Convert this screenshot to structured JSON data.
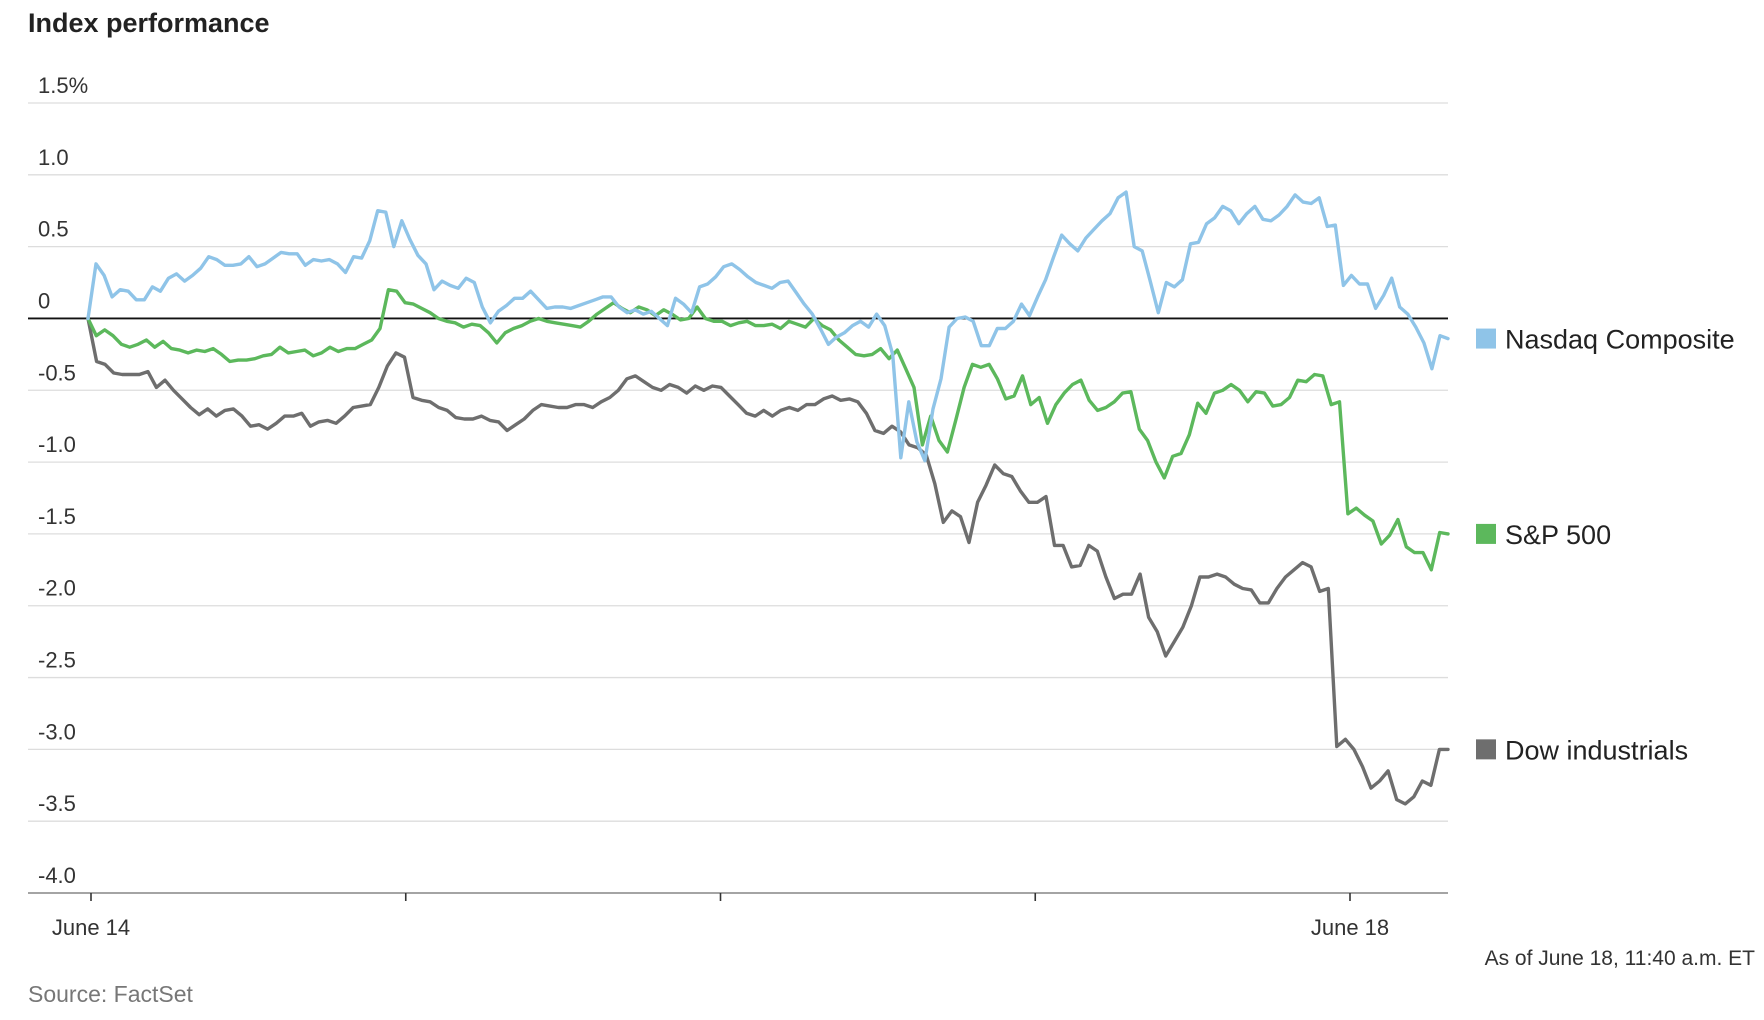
{
  "chart_data": {
    "type": "line",
    "title": "Index performance",
    "ylabel": "",
    "xlabel": "",
    "ylim": [
      -4.0,
      1.5
    ],
    "y_ticks": [
      {
        "value": 1.5,
        "label": "1.5%"
      },
      {
        "value": 1.0,
        "label": "1.0"
      },
      {
        "value": 0.5,
        "label": "0.5"
      },
      {
        "value": 0,
        "label": "0"
      },
      {
        "value": -0.5,
        "label": "-0.5"
      },
      {
        "value": -1.0,
        "label": "-1.0"
      },
      {
        "value": -1.5,
        "label": "-1.5"
      },
      {
        "value": -2.0,
        "label": "-2.0"
      },
      {
        "value": -2.5,
        "label": "-2.5"
      },
      {
        "value": -3.0,
        "label": "-3.0"
      },
      {
        "value": -3.5,
        "label": "-3.5"
      },
      {
        "value": -4.0,
        "label": "-4.0"
      }
    ],
    "x_ticks": [
      "June 14",
      "",
      "",
      "",
      "June 18"
    ],
    "grid": true,
    "legend_position": "right",
    "series": [
      {
        "name": "Nasdaq Composite",
        "color": "#8fc4e8",
        "values": [
          0.0,
          0.38,
          0.3,
          0.15,
          0.2,
          0.19,
          0.13,
          0.13,
          0.22,
          0.19,
          0.28,
          0.31,
          0.26,
          0.3,
          0.35,
          0.43,
          0.41,
          0.37,
          0.37,
          0.38,
          0.43,
          0.36,
          0.38,
          0.42,
          0.46,
          0.45,
          0.45,
          0.37,
          0.41,
          0.4,
          0.41,
          0.38,
          0.32,
          0.43,
          0.42,
          0.54,
          0.75,
          0.74,
          0.5,
          0.68,
          0.55,
          0.44,
          0.38,
          0.2,
          0.26,
          0.23,
          0.21,
          0.28,
          0.25,
          0.08,
          -0.03,
          0.05,
          0.09,
          0.14,
          0.14,
          0.19,
          0.13,
          0.07,
          0.08,
          0.08,
          0.07,
          0.09,
          0.11,
          0.13,
          0.15,
          0.15,
          0.08,
          0.04,
          0.06,
          0.03,
          0.05,
          0.0,
          -0.05,
          0.14,
          0.1,
          0.04,
          0.22,
          0.24,
          0.29,
          0.36,
          0.38,
          0.34,
          0.29,
          0.25,
          0.23,
          0.21,
          0.25,
          0.26,
          0.18,
          0.1,
          0.03,
          -0.07,
          -0.18,
          -0.13,
          -0.1,
          -0.05,
          -0.02,
          -0.06,
          0.03,
          -0.05,
          -0.25,
          -0.97,
          -0.58,
          -0.86,
          -0.99,
          -0.63,
          -0.42,
          -0.06,
          0.0,
          0.01,
          -0.02,
          -0.19,
          -0.19,
          -0.07,
          -0.07,
          -0.02,
          0.1,
          0.02,
          0.15,
          0.27,
          0.43,
          0.58,
          0.52,
          0.47,
          0.56,
          0.62,
          0.68,
          0.73,
          0.84,
          0.88,
          0.5,
          0.47,
          0.26,
          0.04,
          0.25,
          0.22,
          0.27,
          0.52,
          0.53,
          0.66,
          0.7,
          0.78,
          0.75,
          0.66,
          0.73,
          0.78,
          0.69,
          0.68,
          0.72,
          0.78,
          0.86,
          0.81,
          0.8,
          0.84,
          0.64,
          0.65,
          0.23,
          0.3,
          0.24,
          0.24,
          0.07,
          0.16,
          0.28,
          0.08,
          0.03,
          -0.06,
          -0.17,
          -0.35,
          -0.12,
          -0.14
        ]
      },
      {
        "name": "S&P 500",
        "color": "#5cb85c",
        "values": [
          0.0,
          -0.12,
          -0.08,
          -0.12,
          -0.18,
          -0.2,
          -0.18,
          -0.15,
          -0.2,
          -0.16,
          -0.21,
          -0.22,
          -0.24,
          -0.22,
          -0.23,
          -0.21,
          -0.25,
          -0.3,
          -0.29,
          -0.29,
          -0.28,
          -0.26,
          -0.25,
          -0.2,
          -0.24,
          -0.23,
          -0.22,
          -0.26,
          -0.24,
          -0.2,
          -0.23,
          -0.21,
          -0.21,
          -0.18,
          -0.15,
          -0.07,
          0.2,
          0.19,
          0.11,
          0.1,
          0.07,
          0.04,
          0.0,
          -0.02,
          -0.03,
          -0.06,
          -0.04,
          -0.05,
          -0.1,
          -0.17,
          -0.1,
          -0.07,
          -0.05,
          -0.02,
          0.0,
          -0.02,
          -0.03,
          -0.04,
          -0.05,
          -0.06,
          -0.02,
          0.03,
          0.07,
          0.11,
          0.07,
          0.04,
          0.08,
          0.06,
          0.02,
          0.06,
          0.03,
          -0.01,
          0.0,
          0.08,
          0.0,
          -0.02,
          -0.02,
          -0.05,
          -0.03,
          -0.02,
          -0.05,
          -0.05,
          -0.04,
          -0.07,
          -0.02,
          -0.04,
          -0.06,
          0.0,
          -0.05,
          -0.08,
          -0.15,
          -0.2,
          -0.25,
          -0.26,
          -0.25,
          -0.21,
          -0.28,
          -0.22,
          -0.35,
          -0.48,
          -0.88,
          -0.68,
          -0.85,
          -0.93,
          -0.71,
          -0.48,
          -0.32,
          -0.34,
          -0.32,
          -0.42,
          -0.56,
          -0.54,
          -0.4,
          -0.6,
          -0.55,
          -0.73,
          -0.6,
          -0.52,
          -0.46,
          -0.43,
          -0.57,
          -0.64,
          -0.62,
          -0.58,
          -0.52,
          -0.51,
          -0.77,
          -0.85,
          -1.0,
          -1.11,
          -0.96,
          -0.94,
          -0.81,
          -0.59,
          -0.66,
          -0.52,
          -0.5,
          -0.46,
          -0.5,
          -0.58,
          -0.51,
          -0.52,
          -0.61,
          -0.6,
          -0.55,
          -0.43,
          -0.44,
          -0.39,
          -0.4,
          -0.6,
          -0.58,
          -1.36,
          -1.32,
          -1.37,
          -1.41,
          -1.57,
          -1.51,
          -1.4,
          -1.59,
          -1.63,
          -1.63,
          -1.75,
          -1.49,
          -1.5
        ]
      },
      {
        "name": "Dow industrials",
        "color": "#6e6e6e",
        "values": [
          0.0,
          -0.3,
          -0.32,
          -0.38,
          -0.39,
          -0.39,
          -0.39,
          -0.37,
          -0.48,
          -0.43,
          -0.5,
          -0.56,
          -0.62,
          -0.67,
          -0.63,
          -0.68,
          -0.64,
          -0.63,
          -0.68,
          -0.75,
          -0.74,
          -0.77,
          -0.73,
          -0.68,
          -0.68,
          -0.66,
          -0.75,
          -0.72,
          -0.71,
          -0.73,
          -0.68,
          -0.62,
          -0.61,
          -0.6,
          -0.48,
          -0.33,
          -0.24,
          -0.27,
          -0.55,
          -0.57,
          -0.58,
          -0.62,
          -0.64,
          -0.69,
          -0.7,
          -0.7,
          -0.68,
          -0.71,
          -0.72,
          -0.78,
          -0.74,
          -0.7,
          -0.64,
          -0.6,
          -0.61,
          -0.62,
          -0.62,
          -0.6,
          -0.6,
          -0.62,
          -0.58,
          -0.55,
          -0.5,
          -0.42,
          -0.4,
          -0.44,
          -0.48,
          -0.5,
          -0.46,
          -0.48,
          -0.52,
          -0.47,
          -0.5,
          -0.47,
          -0.48,
          -0.54,
          -0.6,
          -0.66,
          -0.68,
          -0.64,
          -0.68,
          -0.64,
          -0.62,
          -0.64,
          -0.6,
          -0.6,
          -0.56,
          -0.54,
          -0.57,
          -0.56,
          -0.58,
          -0.66,
          -0.78,
          -0.8,
          -0.75,
          -0.79,
          -0.88,
          -0.9,
          -0.95,
          -1.15,
          -1.42,
          -1.34,
          -1.38,
          -1.56,
          -1.28,
          -1.16,
          -1.02,
          -1.08,
          -1.1,
          -1.2,
          -1.28,
          -1.28,
          -1.24,
          -1.58,
          -1.58,
          -1.73,
          -1.72,
          -1.58,
          -1.62,
          -1.8,
          -1.95,
          -1.92,
          -1.92,
          -1.78,
          -2.08,
          -2.18,
          -2.35,
          -2.25,
          -2.15,
          -2.0,
          -1.8,
          -1.8,
          -1.78,
          -1.8,
          -1.85,
          -1.88,
          -1.89,
          -1.98,
          -1.98,
          -1.88,
          -1.8,
          -1.75,
          -1.7,
          -1.73,
          -1.9,
          -1.88,
          -2.98,
          -2.93,
          -3.0,
          -3.12,
          -3.27,
          -3.22,
          -3.15,
          -3.35,
          -3.38,
          -3.33,
          -3.22,
          -3.25,
          -3.0,
          -3.0
        ]
      }
    ]
  },
  "source": "Source: FactSet",
  "note": "As of June 18, 11:40 a.m. ET"
}
